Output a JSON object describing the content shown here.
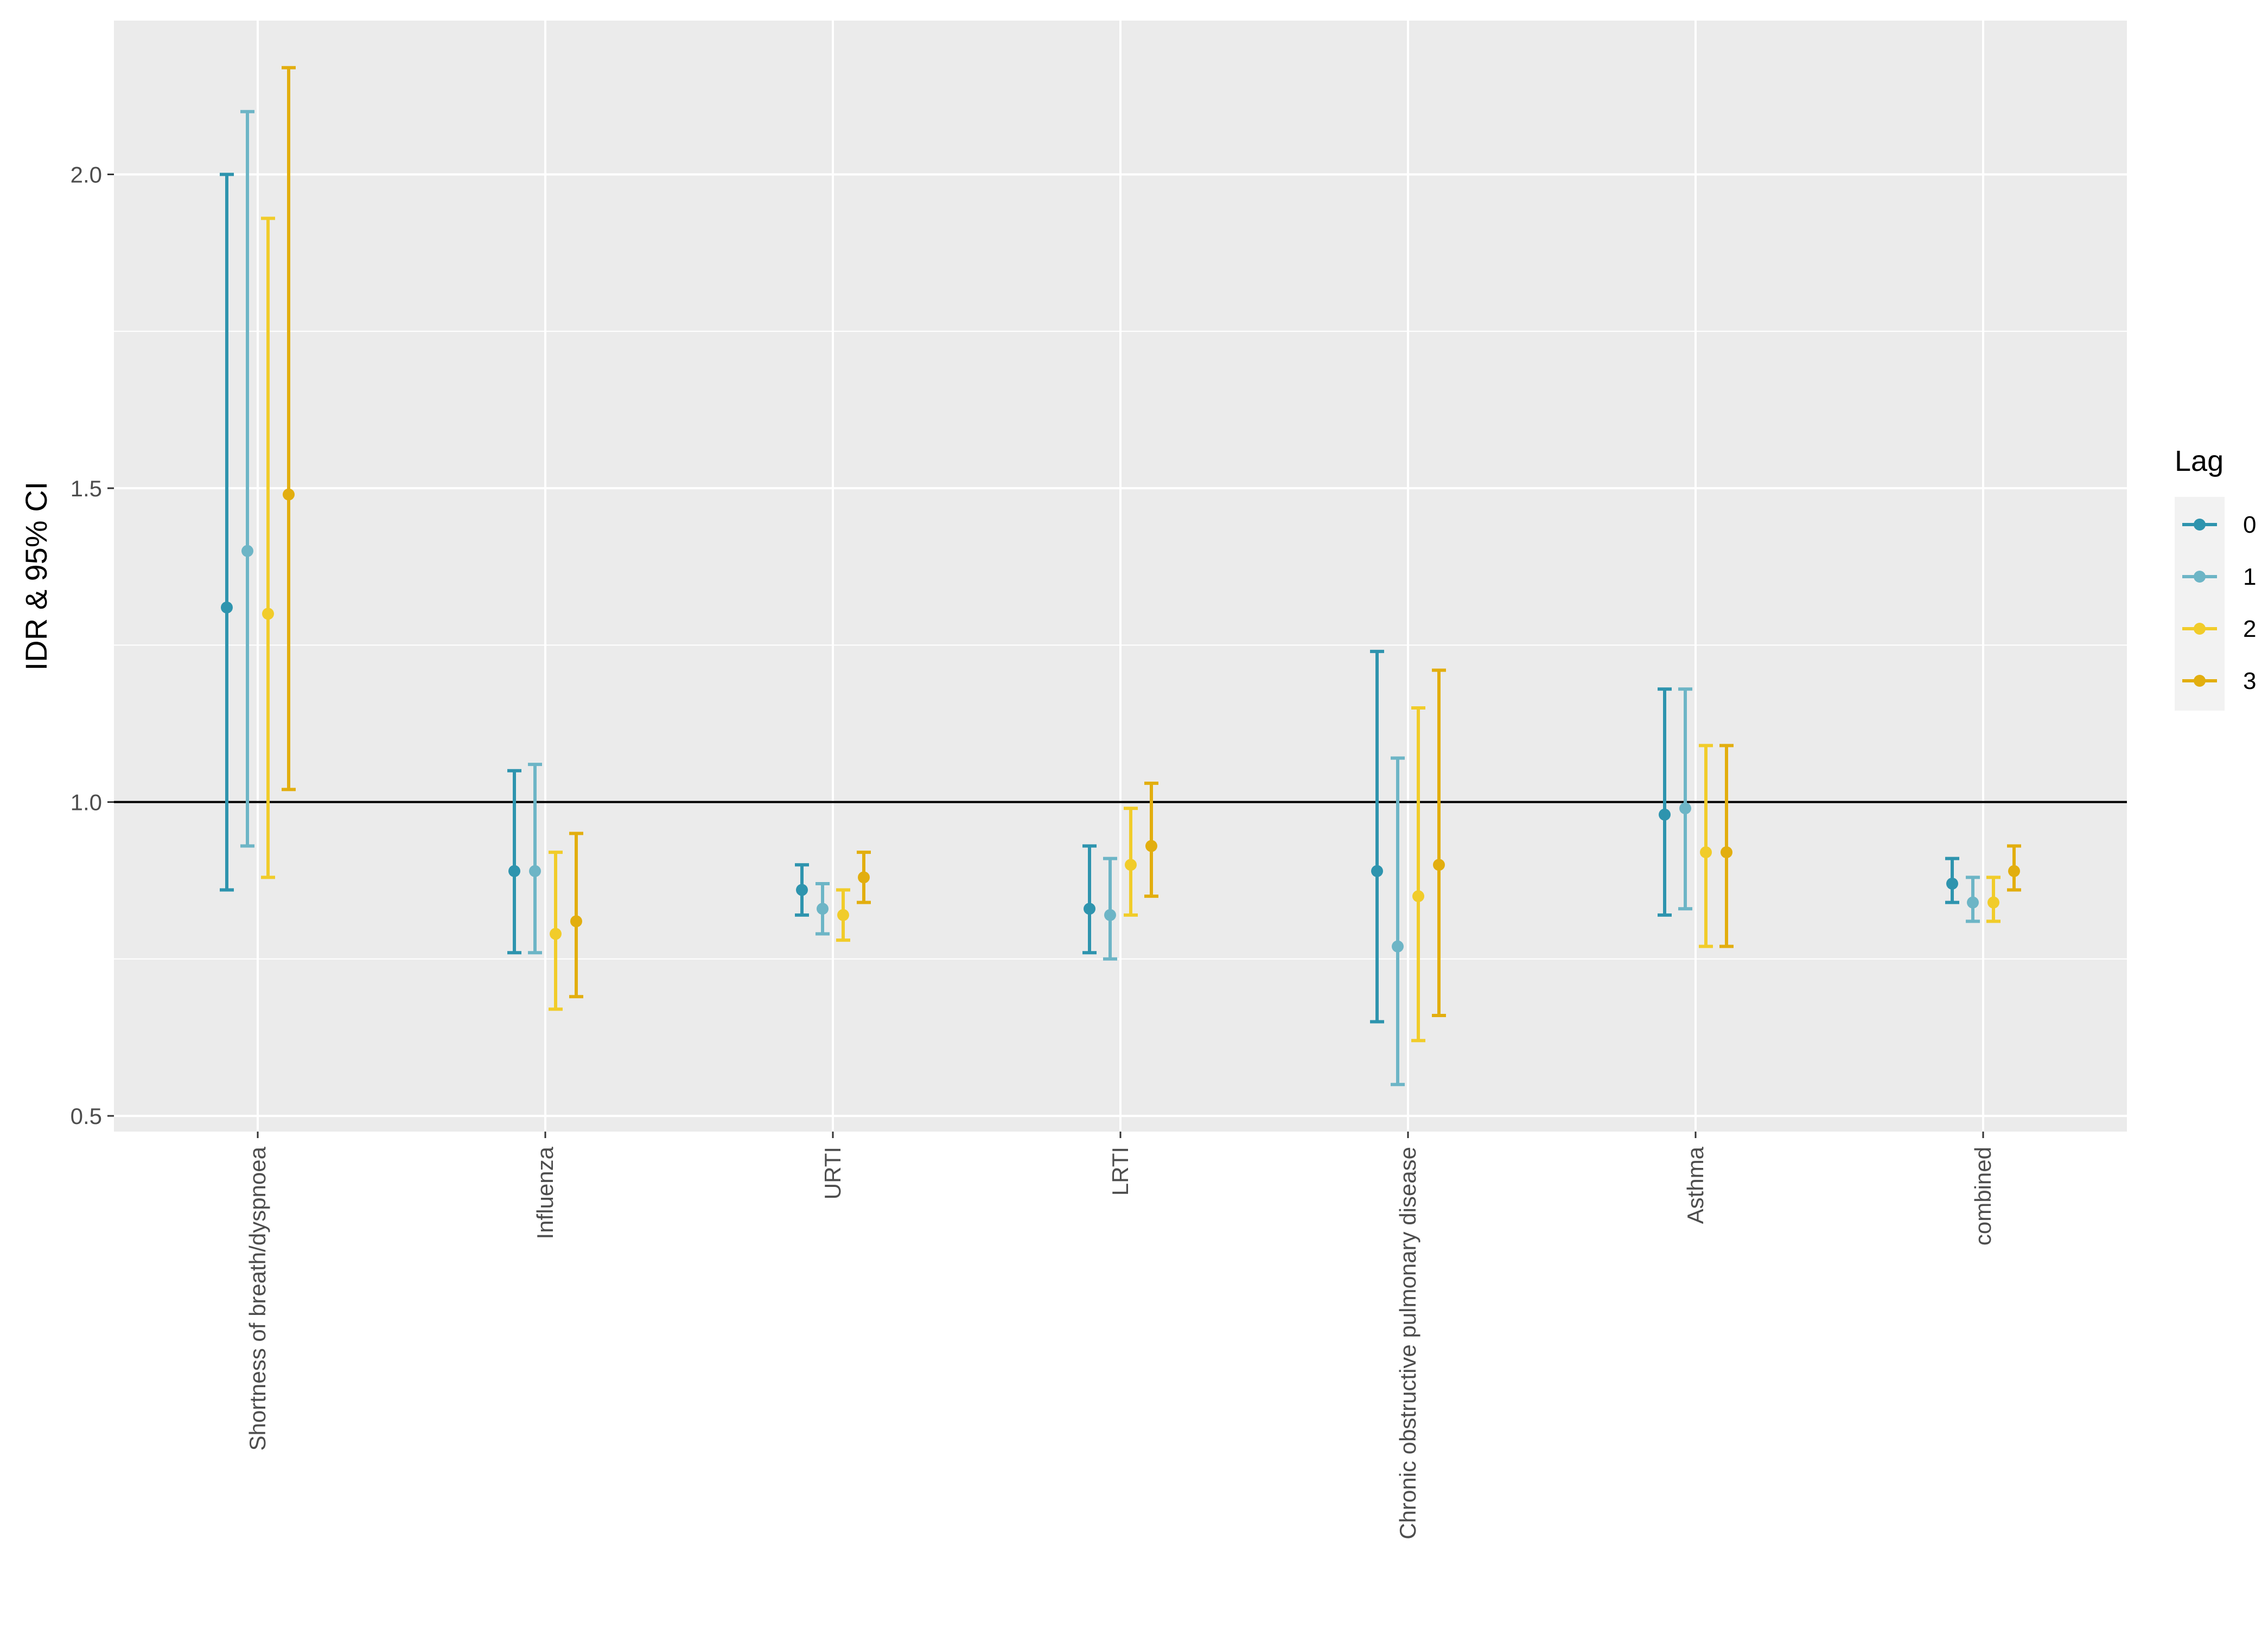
{
  "chart_data": {
    "type": "errorbar",
    "title": "",
    "xlabel": "",
    "ylabel": "IDR & 95% CI",
    "ylim": [
      0.475,
      2.245
    ],
    "yticks": [
      0.5,
      1.0,
      1.5,
      2.0
    ],
    "ytick_labels": [
      "0.5",
      "1.0",
      "1.5",
      "2.0"
    ],
    "reference_line": 1.0,
    "categories": [
      "Shortness of breath/dyspnoea",
      "Influenza",
      "URTI",
      "LRTI",
      "Chronic obstructive pulmonary disease",
      "Asthma",
      "combined"
    ],
    "legend": {
      "title": "Lag",
      "position": "right",
      "entries": [
        "0",
        "1",
        "2",
        "3"
      ]
    },
    "series": [
      {
        "name": "0",
        "color": "#2E94AE",
        "estimate": [
          1.31,
          0.89,
          0.86,
          0.83,
          0.89,
          0.98,
          0.87
        ],
        "lower": [
          0.86,
          0.76,
          0.82,
          0.76,
          0.65,
          0.82,
          0.84
        ],
        "upper": [
          2.0,
          1.05,
          0.9,
          0.93,
          1.24,
          1.18,
          0.91
        ]
      },
      {
        "name": "1",
        "color": "#6DB5C6",
        "estimate": [
          1.4,
          0.89,
          0.83,
          0.82,
          0.77,
          0.99,
          0.84
        ],
        "lower": [
          0.93,
          0.76,
          0.79,
          0.75,
          0.55,
          0.83,
          0.81
        ],
        "upper": [
          2.1,
          1.06,
          0.87,
          0.91,
          1.07,
          1.18,
          0.88
        ]
      },
      {
        "name": "2",
        "color": "#F1CC2A",
        "estimate": [
          1.3,
          0.79,
          0.82,
          0.9,
          0.85,
          0.92,
          0.84
        ],
        "lower": [
          0.88,
          0.67,
          0.78,
          0.82,
          0.62,
          0.77,
          0.81
        ],
        "upper": [
          1.93,
          0.92,
          0.86,
          0.99,
          1.15,
          1.09,
          0.88
        ]
      },
      {
        "name": "3",
        "color": "#E2AE0F",
        "estimate": [
          1.49,
          0.81,
          0.88,
          0.93,
          0.9,
          0.92,
          0.89
        ],
        "lower": [
          1.02,
          0.69,
          0.84,
          0.85,
          0.66,
          0.77,
          0.86
        ],
        "upper": [
          2.17,
          0.95,
          0.92,
          1.03,
          1.21,
          1.09,
          0.93
        ]
      }
    ]
  }
}
